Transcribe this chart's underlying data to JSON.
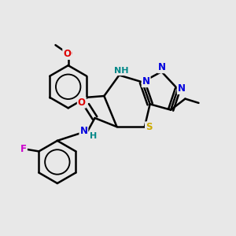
{
  "bg_color": "#e8e8e8",
  "atom_colors": {
    "C": "#000000",
    "N": "#0000dd",
    "O": "#dd0000",
    "S": "#ccaa00",
    "F": "#cc00cc",
    "NH": "#008888"
  },
  "bond_color": "#000000",
  "figsize": [
    3.0,
    3.0
  ],
  "dpi": 100
}
